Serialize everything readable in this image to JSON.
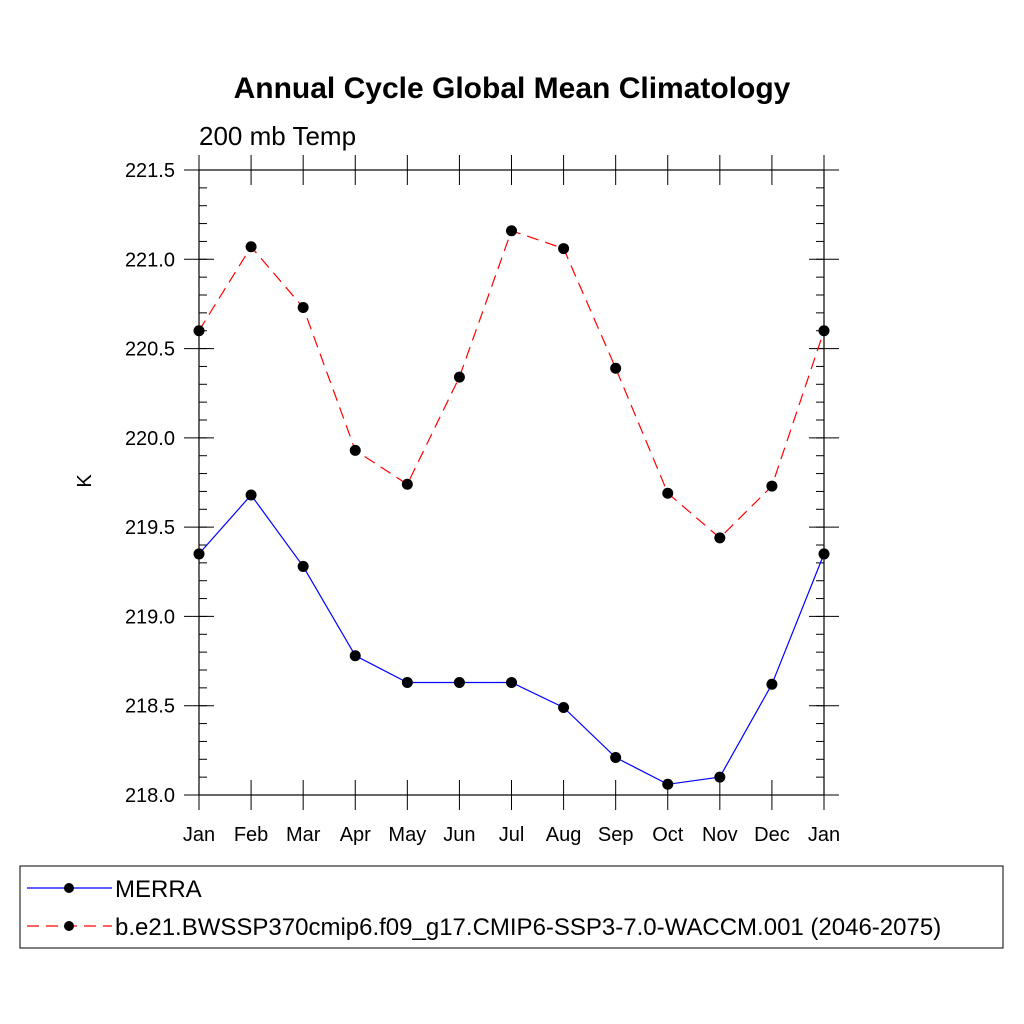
{
  "chart_data": {
    "type": "line",
    "title": "Annual Cycle Global Mean Climatology",
    "subtitle": "200 mb Temp",
    "xlabel": "",
    "ylabel": "K",
    "categories": [
      "Jan",
      "Feb",
      "Mar",
      "Apr",
      "May",
      "Jun",
      "Jul",
      "Aug",
      "Sep",
      "Oct",
      "Nov",
      "Dec",
      "Jan"
    ],
    "ylim": [
      218.0,
      221.5
    ],
    "yticks": [
      "218.0",
      "218.5",
      "219.0",
      "219.5",
      "220.0",
      "220.5",
      "221.0",
      "221.5"
    ],
    "ytick_values": [
      218.0,
      218.5,
      219.0,
      219.5,
      220.0,
      220.5,
      221.0,
      221.5
    ],
    "grid": false,
    "legend_position": "bottom",
    "series": [
      {
        "name": "MERRA",
        "color": "#0000ff",
        "style": "solid",
        "marker": "circle",
        "values": [
          219.35,
          219.68,
          219.28,
          218.78,
          218.63,
          218.63,
          218.63,
          218.49,
          218.21,
          218.06,
          218.1,
          218.62,
          219.35
        ]
      },
      {
        "name": "b.e21.BWSSP370cmip6.f09_g17.CMIP6-SSP3-7.0-WACCM.001 (2046-2075)",
        "color": "#ff0000",
        "style": "dashed",
        "marker": "circle",
        "values": [
          220.6,
          221.07,
          220.73,
          219.93,
          219.74,
          220.34,
          221.16,
          221.06,
          220.39,
          219.69,
          219.44,
          219.73,
          220.6
        ]
      }
    ]
  }
}
